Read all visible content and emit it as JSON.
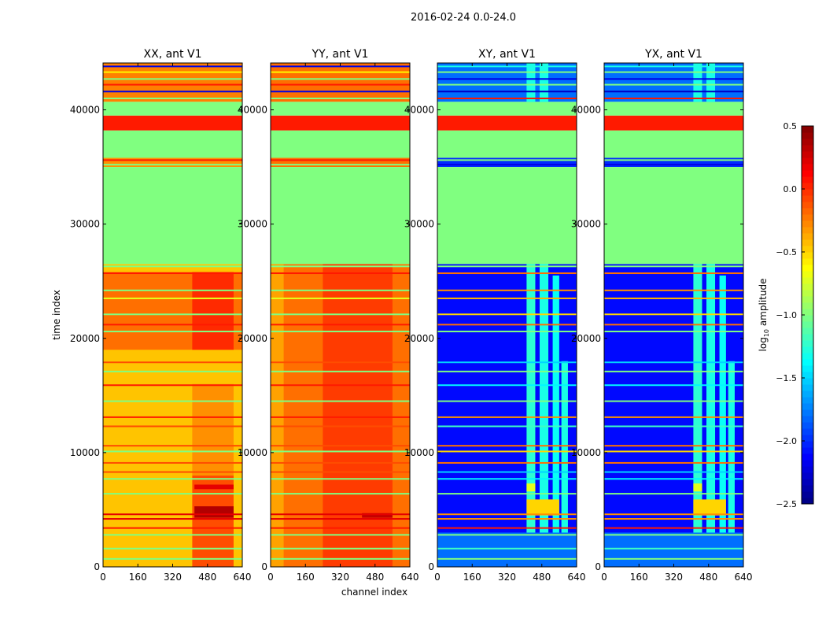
{
  "chart_data": {
    "type": "heatmap",
    "title": "2016-02-24 0.0-24.0",
    "xlabel": "channel index",
    "ylabel": "time index",
    "xlim": [
      0,
      640
    ],
    "ylim": [
      0,
      44100
    ],
    "xticks": [
      "0",
      "160",
      "320",
      "480",
      "640"
    ],
    "xtick_values": [
      0,
      160,
      320,
      480,
      640
    ],
    "yticks": [
      "0",
      "10000",
      "20000",
      "30000",
      "40000"
    ],
    "ytick_values": [
      0,
      10000,
      20000,
      30000,
      40000
    ],
    "colorbar": {
      "label_main": "log",
      "label_sub": "10",
      "label_rest": " amplitude",
      "range": [
        -2.5,
        0.5
      ],
      "colormap": "jet",
      "ticks": [
        "0.5",
        "0.0",
        "−0.5",
        "−1.0",
        "−1.5",
        "−2.0",
        "−2.5"
      ],
      "tick_values": [
        0.5,
        0.0,
        -0.5,
        -1.0,
        -1.5,
        -2.0,
        -2.5
      ]
    },
    "common_bands": [
      {
        "t": [
          26500,
          35000
        ],
        "value": -1.0
      },
      {
        "t": [
          35800,
          38200
        ],
        "value": -1.0
      },
      {
        "t": [
          38200,
          39500
        ],
        "value": 0.05
      },
      {
        "t": [
          39500,
          40700
        ],
        "value": -1.0
      }
    ],
    "panels": [
      {
        "title": "XX, ant V1",
        "kind": "auto",
        "base": [
          {
            "t": [
              0,
              26500
            ],
            "value": -0.45
          },
          {
            "t": [
              35000,
              35800
            ],
            "value": -0.3
          },
          {
            "t": [
              40700,
              44100
            ],
            "value": -0.25
          }
        ],
        "features": [
          {
            "c": [
              0,
              640
            ],
            "t": [
              19000,
              25800
            ],
            "value": -0.2
          },
          {
            "c": [
              410,
              600
            ],
            "t": [
              19000,
              25800
            ],
            "value": 0.0
          },
          {
            "c": [
              410,
              600
            ],
            "t": [
              0,
              8000
            ],
            "value": -0.1
          },
          {
            "c": [
              420,
              600
            ],
            "t": [
              4300,
              5300
            ],
            "value": 0.35
          },
          {
            "c": [
              420,
              600
            ],
            "t": [
              6800,
              7200
            ],
            "value": 0.2
          },
          {
            "c": [
              410,
              600
            ],
            "t": [
              8000,
              16000
            ],
            "value": -0.3
          }
        ]
      },
      {
        "title": "YY, ant V1",
        "kind": "auto",
        "base": [
          {
            "t": [
              0,
              26500
            ],
            "value": -0.2
          },
          {
            "t": [
              35000,
              35800
            ],
            "value": -0.2
          },
          {
            "t": [
              40700,
              44100
            ],
            "value": -0.2
          }
        ],
        "features": [
          {
            "c": [
              0,
              60
            ],
            "t": [
              0,
              26500
            ],
            "value": -0.35
          },
          {
            "c": [
              240,
              560
            ],
            "t": [
              0,
              26500
            ],
            "value": -0.05
          },
          {
            "c": [
              420,
              560
            ],
            "t": [
              4300,
              4700
            ],
            "value": 0.3
          }
        ]
      },
      {
        "title": "XY, ant V1",
        "kind": "cross",
        "base": [
          {
            "t": [
              0,
              26500
            ],
            "value": -2.1
          },
          {
            "t": [
              35000,
              35800
            ],
            "value": -2.0
          },
          {
            "t": [
              40700,
              44100
            ],
            "value": -1.8
          }
        ],
        "features": [
          {
            "c": [
              410,
              450
            ],
            "t": [
              0,
              26500
            ],
            "value": -1.25
          },
          {
            "c": [
              470,
              510
            ],
            "t": [
              0,
              26500
            ],
            "value": -1.3
          },
          {
            "c": [
              530,
              560
            ],
            "t": [
              0,
              25500
            ],
            "value": -1.35
          },
          {
            "c": [
              570,
              600
            ],
            "t": [
              0,
              18000
            ],
            "value": -1.3
          },
          {
            "c": [
              410,
              450
            ],
            "t": [
              40700,
              44100
            ],
            "value": -1.3
          },
          {
            "c": [
              470,
              510
            ],
            "t": [
              40700,
              44100
            ],
            "value": -1.3
          },
          {
            "c": [
              410,
              560
            ],
            "t": [
              4500,
              5900
            ],
            "value": -0.5
          },
          {
            "c": [
              410,
              450
            ],
            "t": [
              6600,
              7300
            ],
            "value": -0.7
          },
          {
            "c": [
              0,
              640
            ],
            "t": [
              0,
              3000
            ],
            "value": -1.8
          }
        ]
      },
      {
        "title": "YX, ant V1",
        "kind": "cross",
        "base": [
          {
            "t": [
              0,
              26500
            ],
            "value": -2.1
          },
          {
            "t": [
              35000,
              35800
            ],
            "value": -2.0
          },
          {
            "t": [
              40700,
              44100
            ],
            "value": -1.8
          }
        ],
        "features": [
          {
            "c": [
              410,
              450
            ],
            "t": [
              0,
              26500
            ],
            "value": -1.25
          },
          {
            "c": [
              470,
              510
            ],
            "t": [
              0,
              26500
            ],
            "value": -1.3
          },
          {
            "c": [
              530,
              560
            ],
            "t": [
              0,
              25500
            ],
            "value": -1.35
          },
          {
            "c": [
              570,
              600
            ],
            "t": [
              0,
              18000
            ],
            "value": -1.3
          },
          {
            "c": [
              410,
              450
            ],
            "t": [
              40700,
              44100
            ],
            "value": -1.3
          },
          {
            "c": [
              470,
              510
            ],
            "t": [
              40700,
              44100
            ],
            "value": -1.3
          },
          {
            "c": [
              410,
              560
            ],
            "t": [
              4500,
              5900
            ],
            "value": -0.5
          },
          {
            "c": [
              410,
              450
            ],
            "t": [
              6600,
              7300
            ],
            "value": -0.7
          },
          {
            "c": [
              0,
              640
            ],
            "t": [
              0,
              3000
            ],
            "value": -1.8
          }
        ]
      }
    ],
    "lines": [
      {
        "t": 700,
        "auto": -1.0,
        "cross": -1.0
      },
      {
        "t": 1600,
        "auto": -1.0,
        "cross": -1.2
      },
      {
        "t": 2800,
        "auto": -1.0,
        "cross": -1.0
      },
      {
        "t": 3400,
        "auto": 0.05,
        "cross": 0.05
      },
      {
        "t": 4200,
        "auto": 0.2,
        "cross": -0.3
      },
      {
        "t": 4600,
        "auto": 0.2,
        "cross": -0.3
      },
      {
        "t": 6400,
        "auto": -1.0,
        "cross": -1.0
      },
      {
        "t": 7700,
        "auto": -1.0,
        "cross": -1.4
      },
      {
        "t": 8300,
        "auto": -0.1,
        "cross": -1.5
      },
      {
        "t": 9100,
        "auto": -0.1,
        "cross": -0.2
      },
      {
        "t": 10100,
        "auto": -1.0,
        "cross": -0.5
      },
      {
        "t": 10600,
        "auto": -0.1,
        "cross": -0.2
      },
      {
        "t": 12300,
        "auto": -0.1,
        "cross": -1.2
      },
      {
        "t": 13100,
        "auto": 0.05,
        "cross": -0.3
      },
      {
        "t": 14500,
        "auto": -1.0,
        "cross": -1.0
      },
      {
        "t": 15900,
        "auto": 0.05,
        "cross": -1.4
      },
      {
        "t": 17100,
        "auto": -1.0,
        "cross": -1.0
      },
      {
        "t": 17900,
        "auto": -0.1,
        "cross": -1.5
      },
      {
        "t": 20600,
        "auto": -1.0,
        "cross": -1.0
      },
      {
        "t": 21200,
        "auto": 0.05,
        "cross": -0.2
      },
      {
        "t": 22100,
        "auto": -1.0,
        "cross": -0.5
      },
      {
        "t": 23500,
        "auto": -0.7,
        "cross": -0.4
      },
      {
        "t": 24200,
        "auto": -1.0,
        "cross": -0.3
      },
      {
        "t": 25700,
        "auto": 0.05,
        "cross": -0.2
      },
      {
        "t": 26300,
        "auto": -1.0,
        "cross": -1.0
      },
      {
        "t": 35200,
        "auto": -1.0,
        "cross": -2.2
      },
      {
        "t": 35600,
        "auto": 0.05,
        "cross": -1.0
      },
      {
        "t": 41000,
        "auto": -1.0,
        "cross": 0.05
      },
      {
        "t": 41600,
        "auto": -2.2,
        "cross": -2.3
      },
      {
        "t": 42200,
        "auto": 0.05,
        "cross": -1.0
      },
      {
        "t": 42700,
        "auto": -1.0,
        "cross": -2.2
      },
      {
        "t": 43300,
        "auto": -0.6,
        "cross": -1.0
      },
      {
        "t": 43800,
        "auto": -2.2,
        "cross": -1.3
      }
    ]
  }
}
